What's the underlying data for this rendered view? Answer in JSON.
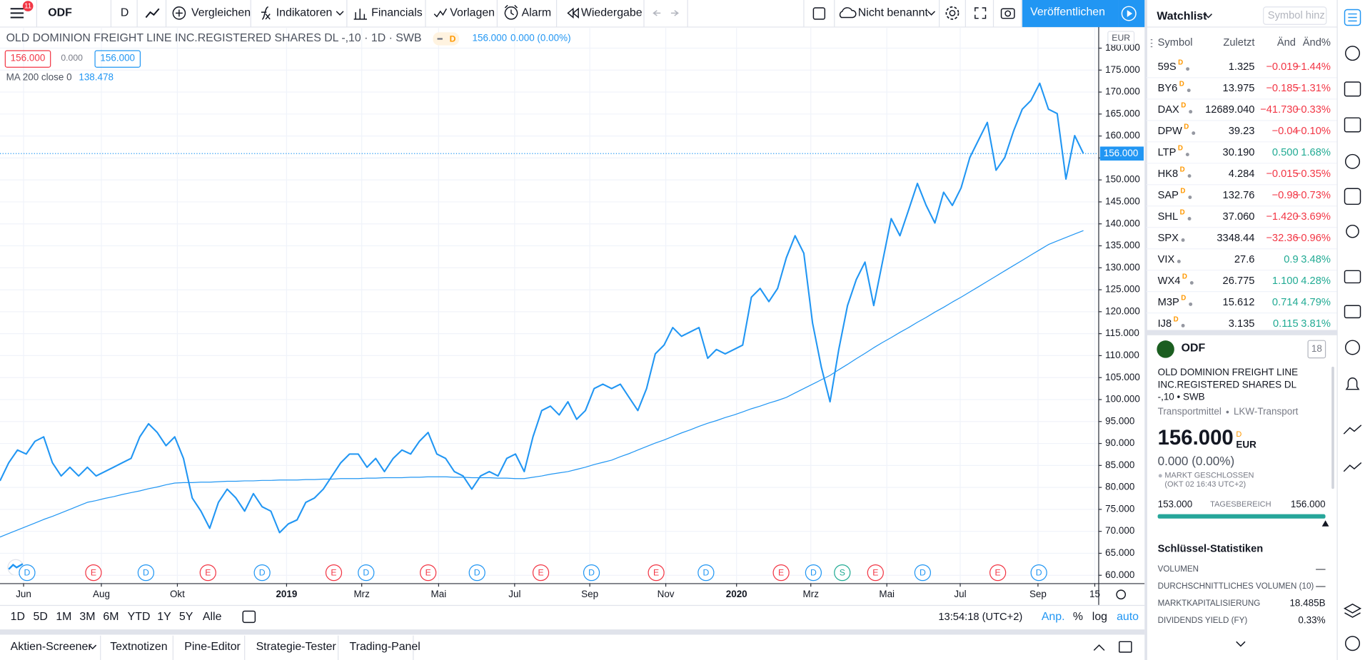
{
  "toolbar": {
    "notifications": "11",
    "symbol": "ODF",
    "interval": "D",
    "buttons": [
      "Vergleichen",
      "Indikatoren",
      "Financials",
      "Vorlagen",
      "Alarm",
      "Wiedergabe"
    ],
    "layout_name": "Nicht benannt",
    "publish": "Veröffentlichen"
  },
  "chart_data": {
    "type": "line",
    "title": "OLD DOMINION FREIGHT LINE INC.REGISTERED SHARES DL -,10 · 1D · SWB",
    "badge": "D",
    "last": "156.000",
    "change": "0.000 (0.00%)",
    "ohlc": [
      {
        "text": "156.000",
        "color": "#f23645"
      },
      {
        "text": "0.000",
        "color": "#787b86"
      },
      {
        "text": "156.000",
        "color": "#2196f3"
      }
    ],
    "currency": "EUR",
    "price_label": "156.000",
    "log_scale": false,
    "grid": true,
    "series": [
      {
        "color": "#2196f3",
        "values": [
          81.5,
          85.6,
          88.5,
          87.6,
          90.5,
          91.5,
          85.6,
          82.6,
          84.6,
          82.6,
          84.6,
          82.6,
          83.6,
          84.6,
          85.6,
          86.6,
          91.5,
          94.5,
          92.5,
          89.5,
          91.5,
          86.6,
          77.6,
          74.6,
          70.7,
          76.6,
          79.6,
          77.6,
          74.6,
          78.6,
          75.6,
          74.6,
          69.7,
          71.7,
          72.6,
          76.6,
          77.6,
          79.6,
          82.6,
          85.6,
          87.6,
          87.6,
          84.6,
          86.6,
          83.6,
          86.6,
          88.5,
          87.6,
          90.5,
          92.5,
          87.6,
          86.6,
          83.6,
          82.6,
          79.6,
          82.6,
          83.6,
          82.6,
          86.6,
          87.6,
          83.6,
          91.5,
          97.5,
          98.5,
          96.5,
          99.5,
          95.5,
          97.5,
          102.5,
          103.5,
          102.5,
          103.5,
          100.5,
          97.5,
          102.5,
          110.4,
          112.4,
          116.4,
          114.4,
          115.4,
          116.4,
          109.4,
          111.4,
          110.4,
          111.4,
          112.4,
          123.3,
          125.3,
          122.3,
          125.3,
          132.3,
          137.3,
          133.3,
          117.4,
          107.4,
          99.5,
          111.4,
          121.4,
          127.3,
          131.3,
          121.4,
          131.3,
          141.2,
          137.3,
          143.2,
          149.2,
          144.2,
          140.2,
          147.2,
          144.2,
          148.2,
          155.1,
          159.1,
          163.1,
          152.2,
          155.1,
          161.1,
          166.1,
          168.1,
          172.0,
          166.1,
          165.1,
          150.2,
          160.1,
          156.0
        ]
      },
      {
        "name": "MA 200 close 0",
        "color": "#2196f3",
        "value_label": "138.478",
        "values": [
          68.7,
          69.5,
          70.3,
          71.1,
          71.9,
          72.7,
          73.4,
          74.2,
          75.0,
          75.8,
          76.6,
          77.0,
          77.5,
          77.9,
          78.4,
          78.8,
          79.2,
          79.7,
          80.1,
          80.6,
          81.0,
          81.1,
          81.1,
          81.2,
          81.2,
          81.3,
          81.4,
          81.4,
          81.5,
          81.5,
          81.6,
          81.6,
          81.7,
          81.7,
          81.7,
          81.8,
          81.8,
          81.9,
          81.9,
          82.0,
          82.0,
          82.0,
          82.1,
          82.1,
          82.2,
          82.2,
          82.2,
          82.3,
          82.3,
          82.4,
          82.4,
          82.4,
          82.3,
          82.3,
          82.2,
          82.2,
          82.2,
          82.1,
          82.1,
          82.0,
          82.0,
          82.3,
          82.6,
          83.0,
          83.3,
          83.6,
          84.1,
          84.6,
          85.2,
          85.7,
          86.2,
          87.0,
          87.7,
          88.5,
          89.3,
          90.1,
          90.8,
          91.6,
          92.4,
          93.1,
          93.9,
          94.6,
          95.2,
          95.9,
          96.5,
          97.2,
          97.9,
          98.5,
          99.2,
          99.8,
          100.5,
          101.5,
          102.5,
          103.5,
          104.5,
          105.5,
          106.8,
          108.0,
          109.3,
          110.5,
          111.8,
          113.0,
          114.1,
          115.3,
          116.4,
          117.6,
          118.7,
          119.9,
          121.0,
          122.2,
          123.3,
          124.5,
          125.7,
          126.9,
          128.1,
          129.3,
          130.5,
          131.7,
          132.9,
          134.1,
          135.3,
          136.1,
          136.9,
          137.7,
          138.478
        ]
      }
    ],
    "xlim": [
      0,
      125.7
    ],
    "xticks": [
      {
        "value": 2.7,
        "label": "Jun"
      },
      {
        "value": 11.6,
        "label": "Aug"
      },
      {
        "value": 20.3,
        "label": "Okt"
      },
      {
        "value": 32.8,
        "label": "2019",
        "bold": true
      },
      {
        "value": 41.4,
        "label": "Mrz"
      },
      {
        "value": 50.2,
        "label": "Mai"
      },
      {
        "value": 58.9,
        "label": "Jul"
      },
      {
        "value": 67.5,
        "label": "Sep"
      },
      {
        "value": 76.2,
        "label": "Nov"
      },
      {
        "value": 84.3,
        "label": "2020",
        "bold": true
      },
      {
        "value": 92.8,
        "label": "Mrz"
      },
      {
        "value": 101.5,
        "label": "Mai"
      },
      {
        "value": 109.9,
        "label": "Jul"
      },
      {
        "value": 118.8,
        "label": "Sep"
      },
      {
        "value": 125.3,
        "label": "15"
      }
    ],
    "ylim": [
      58.2,
      184.6
    ],
    "yticks": [
      {
        "value": 60,
        "label": "60.000"
      },
      {
        "value": 65,
        "label": "65.000"
      },
      {
        "value": 70,
        "label": "70.000"
      },
      {
        "value": 75,
        "label": "75.000"
      },
      {
        "value": 80,
        "label": "80.000"
      },
      {
        "value": 85,
        "label": "85.000"
      },
      {
        "value": 90,
        "label": "90.000"
      },
      {
        "value": 95,
        "label": "95.000"
      },
      {
        "value": 100,
        "label": "100.000"
      },
      {
        "value": 105,
        "label": "105.000"
      },
      {
        "value": 110,
        "label": "110.000"
      },
      {
        "value": 115,
        "label": "115.000"
      },
      {
        "value": 120,
        "label": "120.000"
      },
      {
        "value": 125,
        "label": "125.000"
      },
      {
        "value": 130,
        "label": "130.000"
      },
      {
        "value": 135,
        "label": "135.000"
      },
      {
        "value": 140,
        "label": "140.000"
      },
      {
        "value": 145,
        "label": "145.000"
      },
      {
        "value": 150,
        "label": "150.000"
      },
      {
        "value": 155,
        "label": "155.000"
      },
      {
        "value": 160,
        "label": "160.000"
      },
      {
        "value": 165,
        "label": "165.000"
      },
      {
        "value": 170,
        "label": "170.000"
      },
      {
        "value": 175,
        "label": "175.000"
      },
      {
        "value": 180,
        "label": "180.000"
      }
    ],
    "events": [
      {
        "value": 3.1,
        "label": "D",
        "color": "#2196f3"
      },
      {
        "value": 10.7,
        "label": "E",
        "color": "#f23645"
      },
      {
        "value": 16.7,
        "label": "D",
        "color": "#2196f3"
      },
      {
        "value": 23.8,
        "label": "E",
        "color": "#f23645"
      },
      {
        "value": 30.0,
        "label": "D",
        "color": "#2196f3"
      },
      {
        "value": 38.2,
        "label": "E",
        "color": "#f23645"
      },
      {
        "value": 41.9,
        "label": "D",
        "color": "#2196f3"
      },
      {
        "value": 49.0,
        "label": "E",
        "color": "#f23645"
      },
      {
        "value": 54.6,
        "label": "D",
        "color": "#2196f3"
      },
      {
        "value": 61.9,
        "label": "E",
        "color": "#f23645"
      },
      {
        "value": 67.7,
        "label": "D",
        "color": "#2196f3"
      },
      {
        "value": 75.1,
        "label": "E",
        "color": "#f23645"
      },
      {
        "value": 80.8,
        "label": "D",
        "color": "#2196f3"
      },
      {
        "value": 89.4,
        "label": "E",
        "color": "#f23645"
      },
      {
        "value": 93.1,
        "label": "D",
        "color": "#2196f3"
      },
      {
        "value": 96.4,
        "label": "S",
        "color": "#22ab94"
      },
      {
        "value": 100.2,
        "label": "E",
        "color": "#f23645"
      },
      {
        "value": 105.6,
        "label": "D",
        "color": "#2196f3"
      },
      {
        "value": 114.2,
        "label": "E",
        "color": "#f23645"
      },
      {
        "value": 118.9,
        "label": "D",
        "color": "#2196f3"
      }
    ]
  },
  "range_bar": {
    "ranges": [
      "1D",
      "5D",
      "1M",
      "3M",
      "6M",
      "YTD",
      "1Y",
      "5Y",
      "Alle"
    ],
    "time": "13:54:18 (UTC+2)",
    "options": [
      "Anp.",
      "%",
      "log",
      "auto"
    ]
  },
  "tabs": [
    "Aktien-Screener",
    "Textnotizen",
    "Pine-Editor",
    "Strategie-Tester",
    "Trading-Panel"
  ],
  "watchlist": {
    "title": "Watchlist",
    "search": "Symbol hinz",
    "columns": [
      "Symbol",
      "Zuletzt",
      "Änd",
      "Änd%"
    ],
    "rows": [
      {
        "symbol": "59S",
        "badge": "D",
        "last": "1.325",
        "chg": "−0.019",
        "pct": "−1.44%",
        "color": "#f23645"
      },
      {
        "symbol": "BY6",
        "badge": "D",
        "last": "13.975",
        "chg": "−0.185",
        "pct": "−1.31%",
        "color": "#f23645"
      },
      {
        "symbol": "DAX",
        "badge": "D",
        "last": "12689.040",
        "chg": "−41.730",
        "pct": "−0.33%",
        "color": "#f23645"
      },
      {
        "symbol": "DPW",
        "badge": "D",
        "last": "39.23",
        "chg": "−0.04",
        "pct": "−0.10%",
        "color": "#f23645"
      },
      {
        "symbol": "LTP",
        "badge": "D",
        "last": "30.190",
        "chg": "0.500",
        "pct": "1.68%",
        "color": "#22ab94"
      },
      {
        "symbol": "HK8",
        "badge": "D",
        "last": "4.284",
        "chg": "−0.015",
        "pct": "−0.35%",
        "color": "#f23645"
      },
      {
        "symbol": "SAP",
        "badge": "D",
        "last": "132.76",
        "chg": "−0.98",
        "pct": "−0.73%",
        "color": "#f23645"
      },
      {
        "symbol": "SHL",
        "badge": "D",
        "last": "37.060",
        "chg": "−1.420",
        "pct": "−3.69%",
        "color": "#f23645"
      },
      {
        "symbol": "SPX",
        "badge": null,
        "last": "3348.44",
        "chg": "−32.36",
        "pct": "−0.96%",
        "color": "#f23645"
      },
      {
        "symbol": "VIX",
        "badge": null,
        "last": "27.6",
        "chg": "0.9",
        "pct": "3.48%",
        "color": "#22ab94"
      },
      {
        "symbol": "WX4",
        "badge": "D",
        "last": "26.775",
        "chg": "1.100",
        "pct": "4.28%",
        "color": "#22ab94"
      },
      {
        "symbol": "M3P",
        "badge": "D",
        "last": "15.612",
        "chg": "0.714",
        "pct": "4.79%",
        "color": "#22ab94"
      },
      {
        "symbol": "IJ8",
        "badge": "D",
        "last": "3.135",
        "chg": "0.115",
        "pct": "3.81%",
        "color": "#22ab94"
      }
    ]
  },
  "details": {
    "symbol": "ODF",
    "count": "18",
    "description": "OLD DOMINION FREIGHT LINE INC.REGISTERED SHARES DL -,10 • SWB",
    "sector": "Transportmittel",
    "industry": "LKW-Transport",
    "price": "156.000",
    "badge": "D",
    "currency": "EUR",
    "change": "0.000 (0.00%)",
    "status": "MARKT GESCHLOSSEN",
    "status_time": "(OKT 02 16:43 UTC+2)",
    "range_low": "153.000",
    "range_title": "TAGESBEREICH",
    "range_high": "156.000",
    "stats_title": "Schlüssel-Statistiken",
    "stats": [
      {
        "label": "VOLUMEN",
        "value": "—"
      },
      {
        "label": "DURCHSCHNITTLICHES VOLUMEN (10)",
        "value": "—"
      },
      {
        "label": "MARKTKAPITALISIERUNG",
        "value": "18.485B"
      },
      {
        "label": "DIVIDENDS YIELD (FY)",
        "value": "0.33%"
      }
    ]
  }
}
